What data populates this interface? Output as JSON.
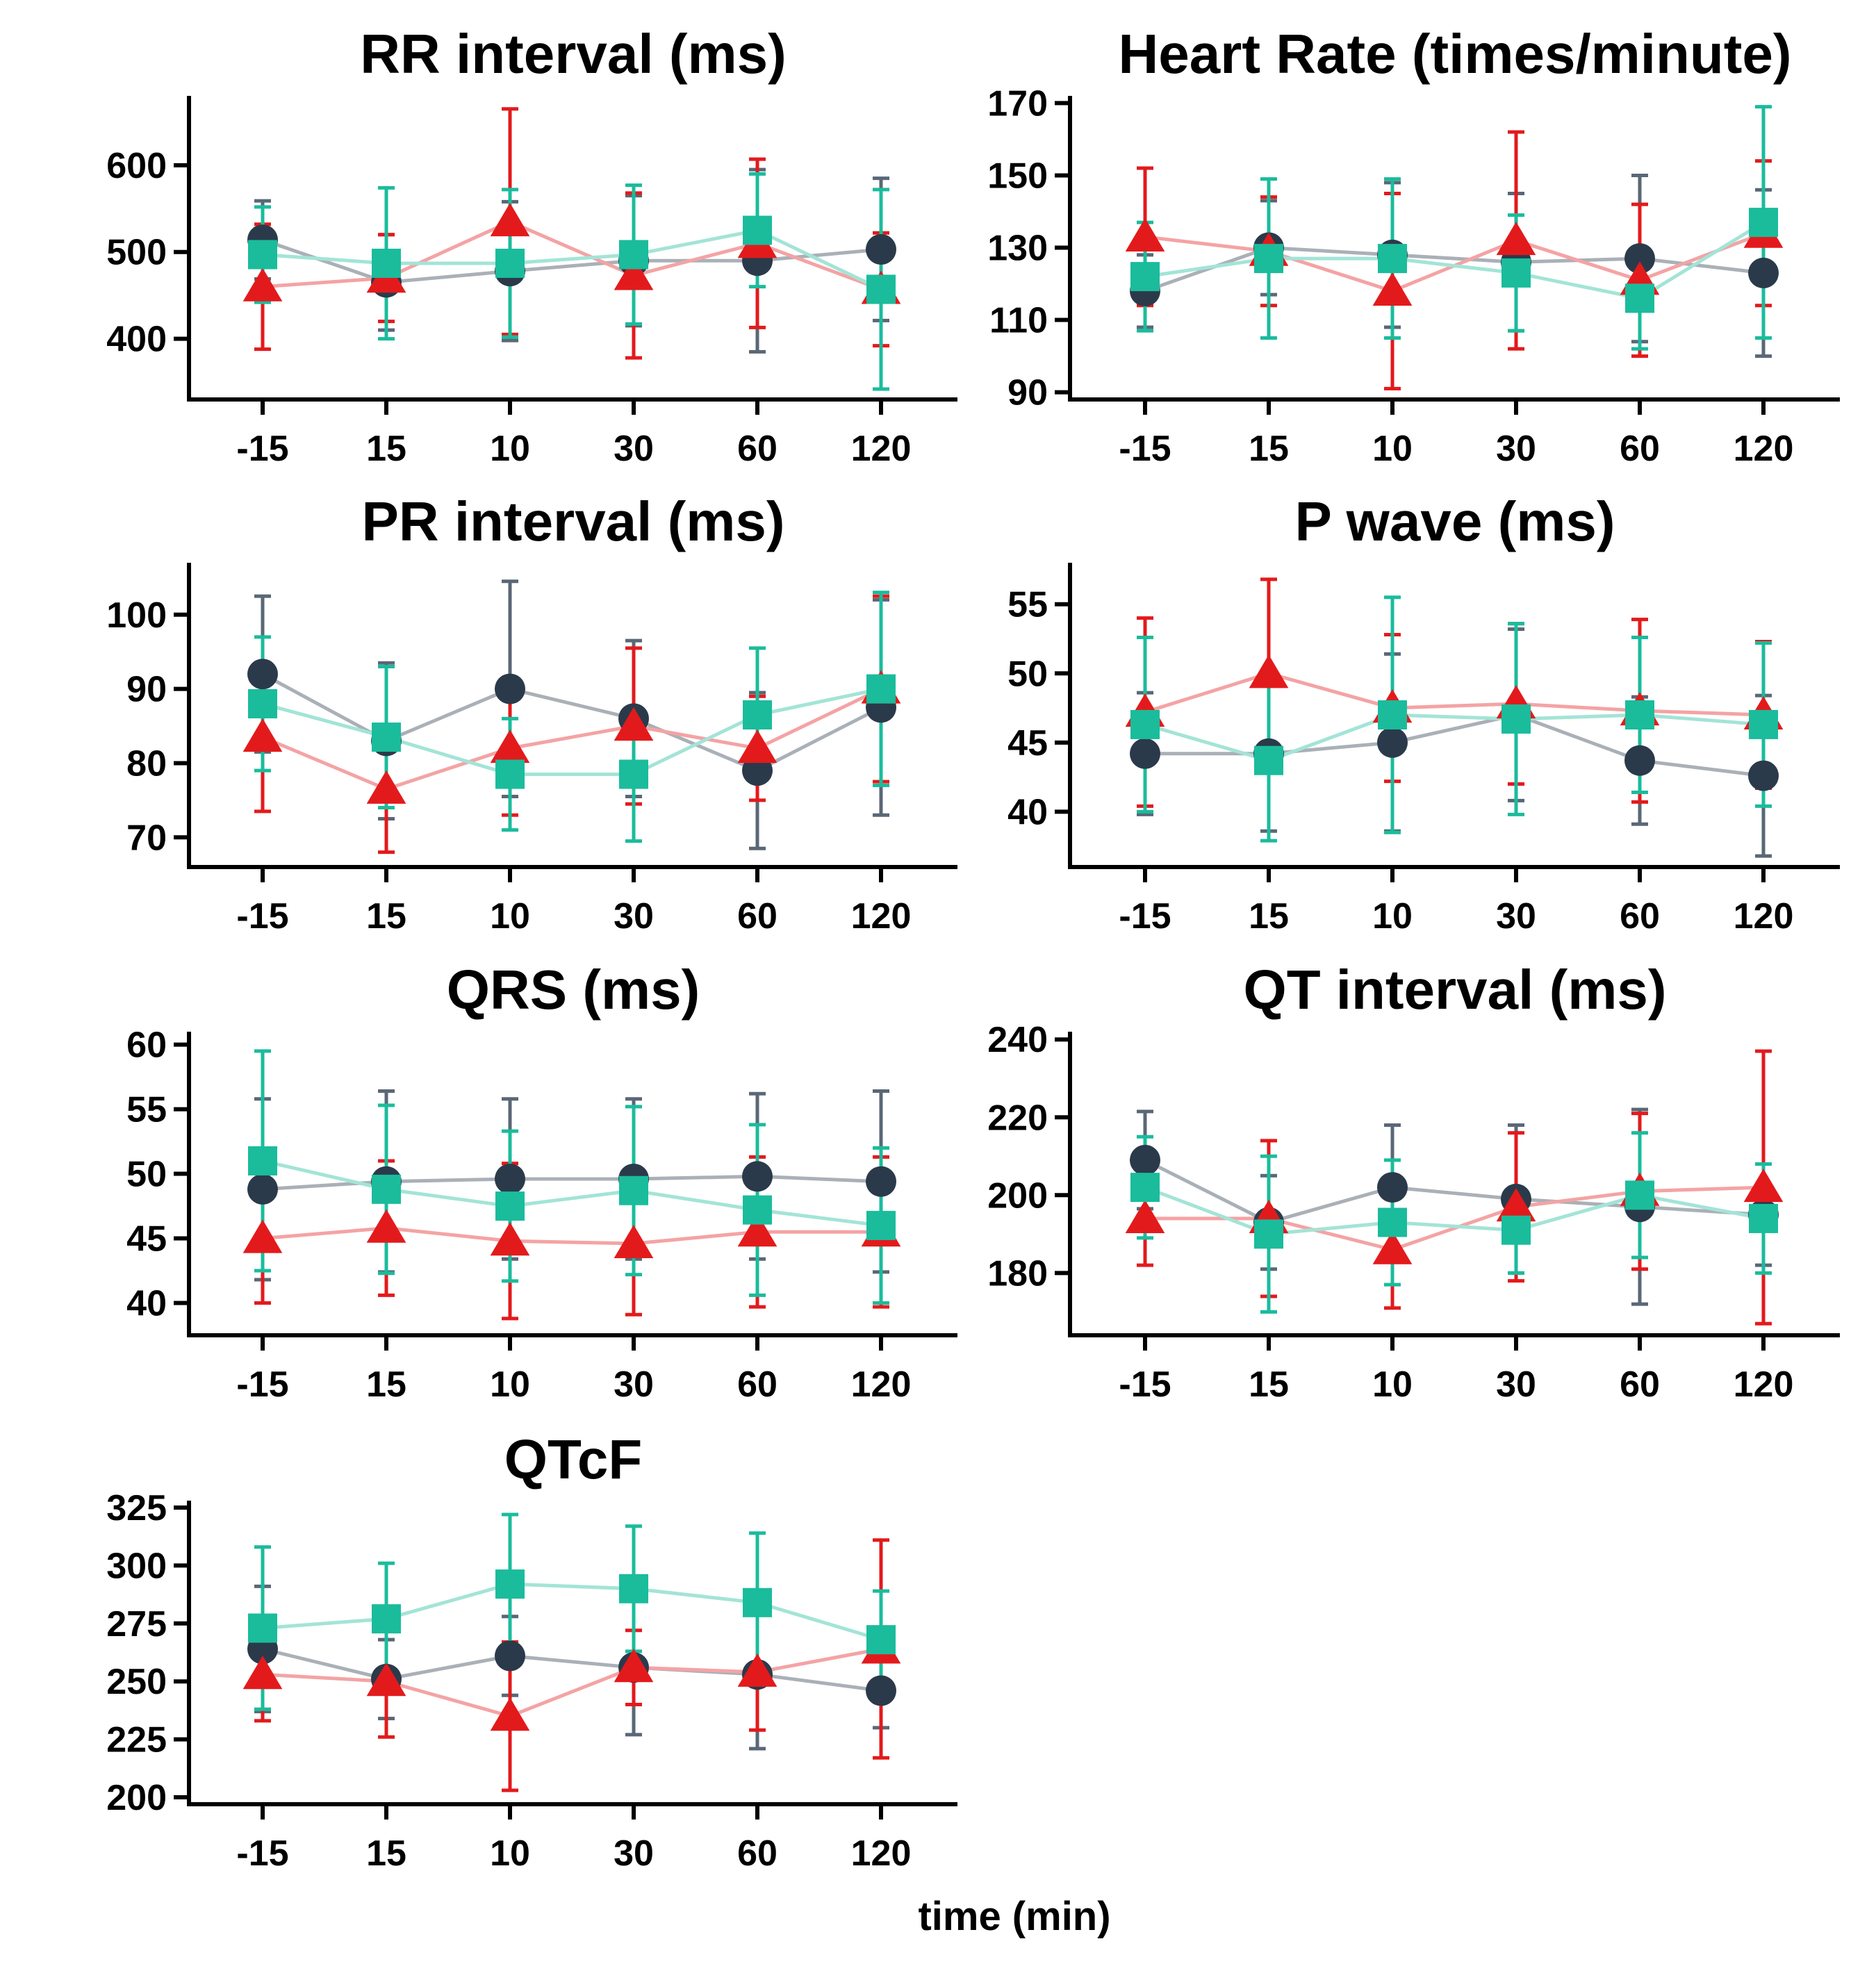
{
  "xlabel": "time (min)",
  "colors": {
    "circle": "#2b3a4a",
    "triangle": "#e31a1c",
    "square": "#1abc9c"
  },
  "chart_data": [
    {
      "type": "line",
      "title": "RR interval (ms)",
      "categories": [
        "-15",
        "15",
        "10",
        "30",
        "60",
        "120"
      ],
      "ylim": [
        330,
        680
      ],
      "yticks": [
        400,
        500,
        600
      ],
      "series": [
        {
          "marker": "circle",
          "color": "#2b3a4a",
          "values": [
            514,
            465,
            478,
            490,
            490,
            503
          ],
          "err": [
            45,
            55,
            80,
            75,
            105,
            82
          ]
        },
        {
          "marker": "triangle",
          "color": "#e31a1c",
          "values": [
            460,
            470,
            535,
            473,
            510,
            457
          ],
          "err": [
            72,
            50,
            130,
            95,
            97,
            65
          ]
        },
        {
          "marker": "square",
          "color": "#1abc9c",
          "values": [
            497,
            487,
            487,
            497,
            525,
            457
          ],
          "err": [
            55,
            87,
            85,
            80,
            65,
            115
          ]
        }
      ]
    },
    {
      "type": "line",
      "title": "Heart Rate (times/minute)",
      "categories": [
        "-15",
        "15",
        "10",
        "30",
        "60",
        "120"
      ],
      "ylim": [
        88,
        172
      ],
      "yticks": [
        90,
        110,
        130,
        150,
        170
      ],
      "series": [
        {
          "marker": "circle",
          "color": "#2b3a4a",
          "values": [
            118,
            130,
            128,
            126,
            127,
            123
          ],
          "err": [
            10,
            13,
            20,
            19,
            23,
            23
          ]
        },
        {
          "marker": "triangle",
          "color": "#e31a1c",
          "values": [
            133,
            129,
            118,
            132,
            121,
            134
          ],
          "err": [
            19,
            15,
            27,
            30,
            21,
            20
          ]
        },
        {
          "marker": "square",
          "color": "#1abc9c",
          "values": [
            122,
            127,
            127,
            123,
            116,
            137
          ],
          "err": [
            15,
            22,
            22,
            16,
            14,
            32
          ]
        }
      ]
    },
    {
      "type": "line",
      "title": "PR interval (ms)",
      "categories": [
        "-15",
        "15",
        "10",
        "30",
        "60",
        "120"
      ],
      "ylim": [
        66,
        107
      ],
      "yticks": [
        70,
        80,
        90,
        100
      ],
      "series": [
        {
          "marker": "circle",
          "color": "#2b3a4a",
          "values": [
            92,
            83,
            90,
            86,
            79,
            87.5
          ],
          "err": [
            10.5,
            10.5,
            14.5,
            10.5,
            10.5,
            14.5
          ]
        },
        {
          "marker": "triangle",
          "color": "#e31a1c",
          "values": [
            83.5,
            76.5,
            82,
            85,
            82,
            90
          ],
          "err": [
            10,
            8.5,
            9,
            10.5,
            7,
            12.5
          ]
        },
        {
          "marker": "square",
          "color": "#1abc9c",
          "values": [
            88,
            83.5,
            78.5,
            78.5,
            86.5,
            90
          ],
          "err": [
            9,
            9.5,
            7.5,
            9,
            9,
            13
          ]
        }
      ]
    },
    {
      "type": "line",
      "title": "P wave (ms)",
      "categories": [
        "-15",
        "15",
        "10",
        "30",
        "60",
        "120"
      ],
      "ylim": [
        36,
        58
      ],
      "yticks": [
        40,
        45,
        50,
        55
      ],
      "series": [
        {
          "marker": "circle",
          "color": "#2b3a4a",
          "values": [
            44.2,
            44.2,
            45,
            47,
            43.7,
            42.6
          ],
          "err": [
            4.4,
            5.6,
            6.4,
            6.2,
            4.6,
            5.8
          ]
        },
        {
          "marker": "triangle",
          "color": "#e31a1c",
          "values": [
            47.2,
            50,
            47.5,
            47.8,
            47.3,
            47
          ],
          "err": [
            6.8,
            6.8,
            5.3,
            5.8,
            6.6,
            5.3
          ]
        },
        {
          "marker": "square",
          "color": "#1abc9c",
          "values": [
            46.3,
            43.7,
            47,
            46.7,
            47,
            46.3
          ],
          "err": [
            6.3,
            5.8,
            8.5,
            6.9,
            5.6,
            5.9
          ]
        }
      ]
    },
    {
      "type": "line",
      "title": "QRS (ms)",
      "categories": [
        "-15",
        "15",
        "10",
        "30",
        "60",
        "120"
      ],
      "ylim": [
        37.5,
        61
      ],
      "yticks": [
        40,
        45,
        50,
        55,
        60
      ],
      "series": [
        {
          "marker": "circle",
          "color": "#2b3a4a",
          "values": [
            48.8,
            49.4,
            49.6,
            49.6,
            49.8,
            49.4
          ],
          "err": [
            7,
            7,
            6.2,
            6.2,
            6.4,
            7
          ]
        },
        {
          "marker": "triangle",
          "color": "#e31a1c",
          "values": [
            45,
            45.8,
            44.8,
            44.6,
            45.5,
            45.5
          ],
          "err": [
            5,
            5.2,
            6,
            5.5,
            5.8,
            5.8
          ]
        },
        {
          "marker": "square",
          "color": "#1abc9c",
          "values": [
            51,
            48.8,
            47.5,
            48.7,
            47.2,
            46
          ],
          "err": [
            8.5,
            6.5,
            5.8,
            6.5,
            6.6,
            6
          ]
        }
      ]
    },
    {
      "type": "line",
      "title": "QT interval (ms)",
      "categories": [
        "-15",
        "15",
        "10",
        "30",
        "60",
        "120"
      ],
      "ylim": [
        164,
        242
      ],
      "yticks": [
        180,
        200,
        220,
        240
      ],
      "series": [
        {
          "marker": "circle",
          "color": "#2b3a4a",
          "values": [
            209,
            193,
            202,
            199,
            197,
            195
          ],
          "err": [
            12.5,
            12,
            16,
            19,
            25,
            13
          ]
        },
        {
          "marker": "triangle",
          "color": "#e31a1c",
          "values": [
            194,
            194,
            186,
            197,
            201,
            202
          ],
          "err": [
            12,
            20,
            15,
            19,
            20,
            35
          ]
        },
        {
          "marker": "square",
          "color": "#1abc9c",
          "values": [
            202,
            190,
            193,
            191,
            200,
            194
          ],
          "err": [
            13,
            20,
            16,
            11,
            16,
            14
          ]
        }
      ]
    },
    {
      "type": "line",
      "title": "QTcF",
      "categories": [
        "-15",
        "15",
        "10",
        "30",
        "60",
        "120"
      ],
      "ylim": [
        197,
        328
      ],
      "yticks": [
        200,
        225,
        250,
        275,
        300,
        325
      ],
      "series": [
        {
          "marker": "circle",
          "color": "#2b3a4a",
          "values": [
            264,
            251,
            261,
            256,
            253,
            246
          ],
          "err": [
            27,
            17,
            17,
            29,
            32,
            16
          ]
        },
        {
          "marker": "triangle",
          "color": "#e31a1c",
          "values": [
            253,
            250,
            235,
            256,
            254,
            264
          ],
          "err": [
            20,
            24,
            32,
            16,
            25,
            47
          ]
        },
        {
          "marker": "square",
          "color": "#1abc9c",
          "values": [
            273,
            277,
            292,
            290,
            284,
            268
          ],
          "err": [
            35,
            24,
            30,
            27,
            30,
            21
          ]
        }
      ]
    }
  ]
}
